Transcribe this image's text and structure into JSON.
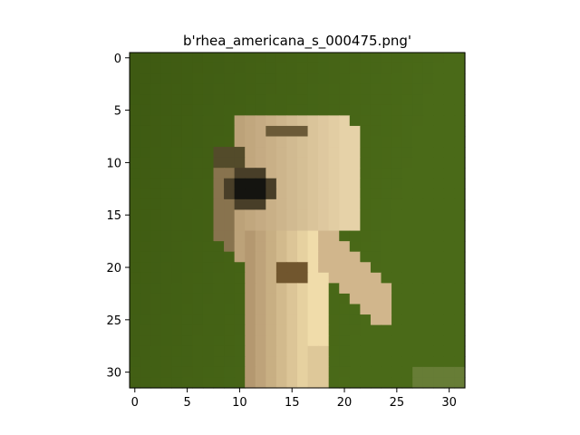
{
  "figure": {
    "title": "b'rhea_americana_s_000475.png'"
  },
  "axes": {
    "x_ticks": [
      "0",
      "5",
      "10",
      "15",
      "20",
      "25",
      "30"
    ],
    "y_ticks": [
      "0",
      "5",
      "10",
      "15",
      "20",
      "25",
      "30"
    ],
    "x_range": [
      -0.5,
      31.5
    ],
    "y_range": [
      -0.5,
      31.5
    ],
    "y_inverted": true
  },
  "image": {
    "grid_size": [
      32,
      32
    ],
    "subject": "rhea head and neck, low-resolution 32x32 pixels",
    "colors": {
      "background": "#4a6a18",
      "background_dark": "#3e5a12",
      "feather_light": "#e6d2a8",
      "feather_mid": "#b49870",
      "feather_dark": "#6b5a38",
      "neck_light": "#f0dcaa",
      "eye": "#141410",
      "beak": "#c8aa80",
      "shadow": "#2f3416"
    }
  }
}
